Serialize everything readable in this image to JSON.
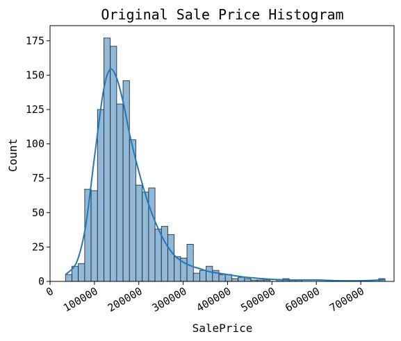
{
  "chart_data": {
    "type": "bar",
    "title": "Original Sale Price Histogram",
    "xlabel": "SalePrice",
    "ylabel": "Count",
    "xlim": [
      0,
      775000
    ],
    "ylim": [
      0,
      186
    ],
    "x_ticks": [
      0,
      100000,
      200000,
      300000,
      400000,
      500000,
      600000,
      700000
    ],
    "x_tick_labels": [
      "0",
      "100000",
      "200000",
      "300000",
      "400000",
      "500000",
      "600000",
      "700000"
    ],
    "y_ticks": [
      0,
      25,
      50,
      75,
      100,
      125,
      150,
      175
    ],
    "y_tick_labels": [
      "0",
      "25",
      "50",
      "75",
      "100",
      "125",
      "150",
      "175"
    ],
    "grid": false,
    "bin_start": 34900,
    "bin_width": 14400,
    "counts": [
      5,
      11,
      13,
      67,
      66,
      125,
      177,
      171,
      129,
      146,
      103,
      70,
      65,
      68,
      38,
      40,
      34,
      18,
      17,
      27,
      6,
      8,
      11,
      8,
      5,
      5,
      2,
      3,
      2,
      1,
      1,
      1,
      0,
      1,
      2,
      1,
      1,
      0,
      0,
      0,
      0,
      0,
      0,
      0,
      0,
      0,
      0,
      0,
      0,
      2
    ],
    "kde": {
      "x": [
        34900,
        60000,
        80000,
        100000,
        120000,
        135000,
        150000,
        165000,
        180000,
        200000,
        220000,
        240000,
        260000,
        280000,
        300000,
        320000,
        340000,
        360000,
        380000,
        400000,
        430000,
        460000,
        500000,
        550000,
        600000,
        650000,
        700000,
        740000,
        755000
      ],
      "y": [
        5,
        14,
        40,
        90,
        138,
        154,
        148,
        130,
        106,
        80,
        58,
        41,
        28,
        19,
        14,
        11,
        9,
        7,
        6,
        5,
        3.5,
        2.5,
        1.5,
        1,
        1,
        0.5,
        0.5,
        1,
        1.5
      ]
    }
  }
}
